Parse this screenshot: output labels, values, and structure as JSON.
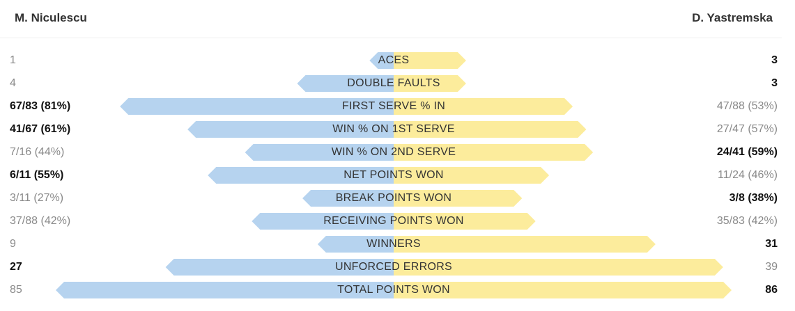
{
  "players": {
    "left": "M. Niculescu",
    "right": "D. Yastremska"
  },
  "colors": {
    "left_bar": "#b6d3ef",
    "right_bar": "#fcec9c"
  },
  "chart_data": {
    "type": "bar",
    "series": [
      {
        "name": "M. Niculescu"
      },
      {
        "name": "D. Yastremska"
      }
    ],
    "rows": [
      {
        "label": "ACES",
        "left": "1",
        "right": "3",
        "left_value": 1,
        "right_value": 3,
        "scale_max": 14,
        "winner": "right"
      },
      {
        "label": "DOUBLE FAULTS",
        "left": "4",
        "right": "3",
        "left_value": 4,
        "right_value": 3,
        "scale_max": 14,
        "winner": "right"
      },
      {
        "label": "FIRST SERVE % IN",
        "left": "67/83 (81%)",
        "right": "47/88 (53%)",
        "left_value": 81,
        "right_value": 53,
        "scale_max": 100,
        "winner": "left"
      },
      {
        "label": "WIN % ON 1ST SERVE",
        "left": "41/67 (61%)",
        "right": "27/47 (57%)",
        "left_value": 61,
        "right_value": 57,
        "scale_max": 100,
        "winner": "left"
      },
      {
        "label": "WIN % ON 2ND SERVE",
        "left": "7/16 (44%)",
        "right": "24/41 (59%)",
        "left_value": 44,
        "right_value": 59,
        "scale_max": 100,
        "winner": "right"
      },
      {
        "label": "NET POINTS WON",
        "left": "6/11 (55%)",
        "right": "11/24 (46%)",
        "left_value": 55,
        "right_value": 46,
        "scale_max": 100,
        "winner": "left"
      },
      {
        "label": "BREAK POINTS WON",
        "left": "3/11 (27%)",
        "right": "3/8 (38%)",
        "left_value": 27,
        "right_value": 38,
        "scale_max": 100,
        "winner": "right"
      },
      {
        "label": "RECEIVING POINTS WON",
        "left": "37/88 (42%)",
        "right": "35/83 (42%)",
        "left_value": 42,
        "right_value": 42,
        "scale_max": 100,
        "winner": "none"
      },
      {
        "label": "WINNERS",
        "left": "9",
        "right": "31",
        "left_value": 9,
        "right_value": 31,
        "scale_max": 40,
        "winner": "right"
      },
      {
        "label": "UNFORCED ERRORS",
        "left": "27",
        "right": "39",
        "left_value": 27,
        "right_value": 39,
        "scale_max": 40,
        "winner": "left"
      },
      {
        "label": "TOTAL POINTS WON",
        "left": "85",
        "right": "86",
        "left_value": 85,
        "right_value": 86,
        "scale_max": 85,
        "winner": "right"
      }
    ]
  }
}
